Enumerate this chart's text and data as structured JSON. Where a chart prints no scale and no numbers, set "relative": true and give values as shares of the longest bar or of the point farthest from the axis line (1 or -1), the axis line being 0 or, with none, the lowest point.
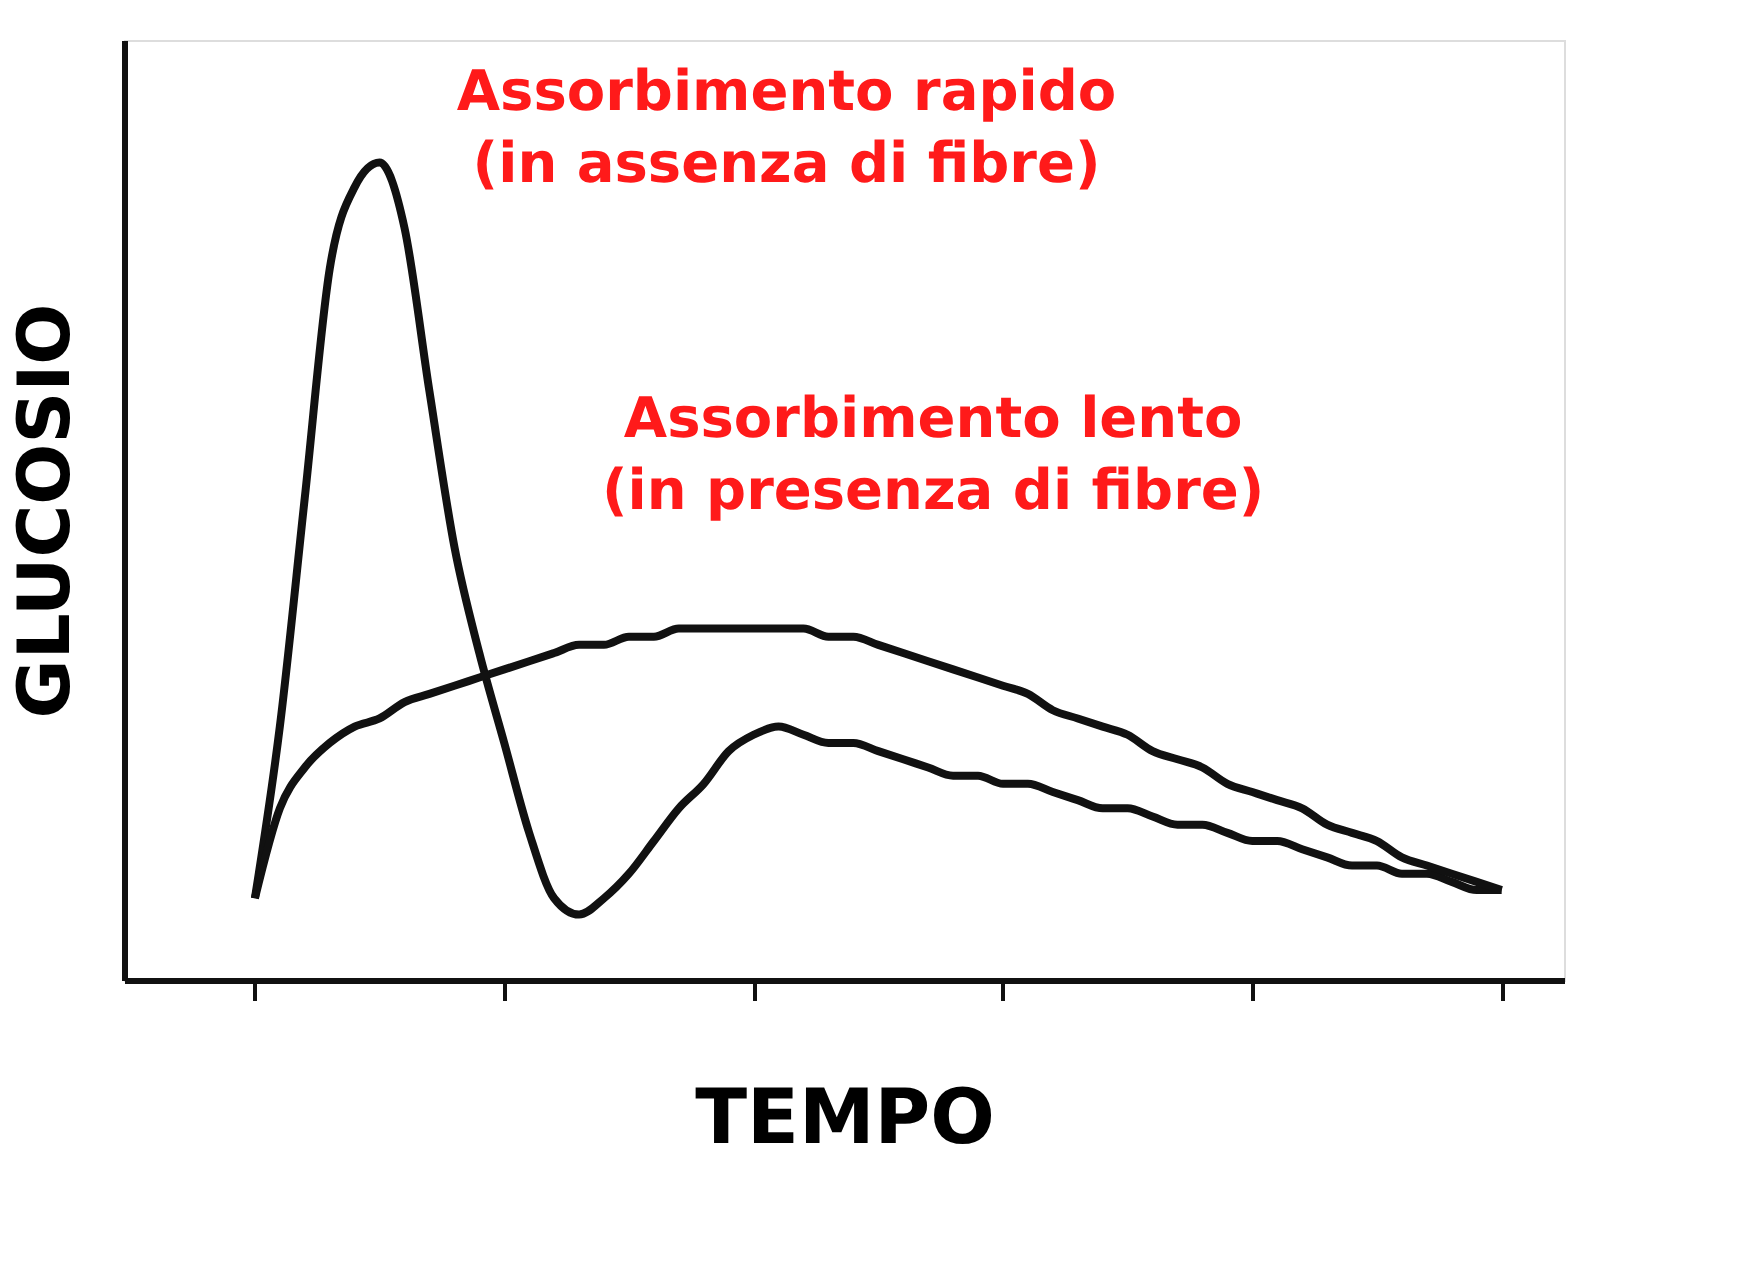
{
  "chart_data": {
    "type": "line",
    "relative": true,
    "xlabel": "TEMPO",
    "ylabel": "GLUCOSIO",
    "grid": false,
    "marker": "none",
    "line_style": "solid",
    "categories": [
      null,
      null,
      null,
      null,
      null,
      null,
      null,
      null,
      null,
      null,
      null,
      null,
      null,
      null,
      null,
      null,
      null,
      null,
      null,
      null,
      null,
      null,
      null,
      null,
      null,
      null,
      null,
      null,
      null,
      null,
      null,
      null,
      null,
      null,
      null,
      null,
      null,
      null,
      null,
      null,
      null,
      null,
      null,
      null,
      null,
      null,
      null,
      null,
      null,
      null,
      null
    ],
    "series": [
      {
        "name": "Assorbimento rapido\n(in assenza di fibre)",
        "color": "#111111",
        "values": [
          0.1,
          0.31,
          0.59,
          0.87,
          0.97,
          1.0,
          0.92,
          0.72,
          0.53,
          0.4,
          0.29,
          0.18,
          0.1,
          0.08,
          0.1,
          0.13,
          0.17,
          0.21,
          0.24,
          0.28,
          0.3,
          0.31,
          0.3,
          0.29,
          0.29,
          0.28,
          0.27,
          0.26,
          0.25,
          0.25,
          0.24,
          0.24,
          0.23,
          0.22,
          0.21,
          0.21,
          0.2,
          0.19,
          0.19,
          0.18,
          0.17,
          0.17,
          0.16,
          0.15,
          0.14,
          0.14,
          0.13,
          0.13,
          0.12,
          0.11,
          0.11
        ]
      },
      {
        "name": "Assorbimento lento\n(in presenza di fibre)",
        "color": "#111111",
        "values": [
          0.1,
          0.21,
          0.26,
          0.29,
          0.31,
          0.32,
          0.34,
          0.35,
          0.36,
          0.37,
          0.38,
          0.39,
          0.4,
          0.41,
          0.41,
          0.42,
          0.42,
          0.43,
          0.43,
          0.43,
          0.43,
          0.43,
          0.43,
          0.42,
          0.42,
          0.41,
          0.4,
          0.39,
          0.38,
          0.37,
          0.36,
          0.35,
          0.33,
          0.32,
          0.31,
          0.3,
          0.28,
          0.27,
          0.26,
          0.24,
          0.23,
          0.22,
          0.21,
          0.19,
          0.18,
          0.17,
          0.15,
          0.14,
          0.13,
          0.12,
          0.11
        ]
      }
    ]
  }
}
